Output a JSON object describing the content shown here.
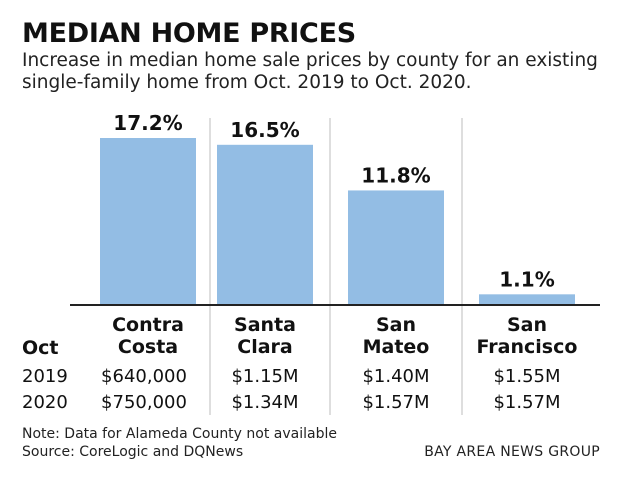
{
  "title": "MEDIAN HOME PRICES",
  "subtitle": "Increase in median home sale prices by county for an existing single-family home from Oct. 2019 to Oct. 2020.",
  "bar_color": "#93bde4",
  "chart_data": {
    "type": "bar",
    "title": "MEDIAN HOME PRICES",
    "categories": [
      "Contra Costa",
      "Santa Clara",
      "San Mateo",
      "San Francisco"
    ],
    "values": [
      17.2,
      16.5,
      11.8,
      1.1
    ],
    "value_labels": [
      "17.2%",
      "16.5%",
      "11.8%",
      "1.1%"
    ],
    "ylim": [
      0,
      17.2
    ],
    "grid": false,
    "legend": "none"
  },
  "table": {
    "header": "Oct",
    "counties": [
      {
        "line1": "Contra",
        "line2": "Costa"
      },
      {
        "line1": "Santa",
        "line2": "Clara"
      },
      {
        "line1": "San",
        "line2": "Mateo"
      },
      {
        "line1": "San",
        "line2": "Francisco"
      }
    ],
    "rows": [
      {
        "year": "2019",
        "values": [
          "$640,000",
          "$1.15M",
          "$1.40M",
          "$1.55M"
        ]
      },
      {
        "year": "2020",
        "values": [
          "$750,000",
          "$1.34M",
          "$1.57M",
          "$1.57M"
        ]
      }
    ]
  },
  "note": "Note: Data for Alameda County not available",
  "source": "Source: CoreLogic and DQNews",
  "credit": "BAY AREA NEWS GROUP"
}
